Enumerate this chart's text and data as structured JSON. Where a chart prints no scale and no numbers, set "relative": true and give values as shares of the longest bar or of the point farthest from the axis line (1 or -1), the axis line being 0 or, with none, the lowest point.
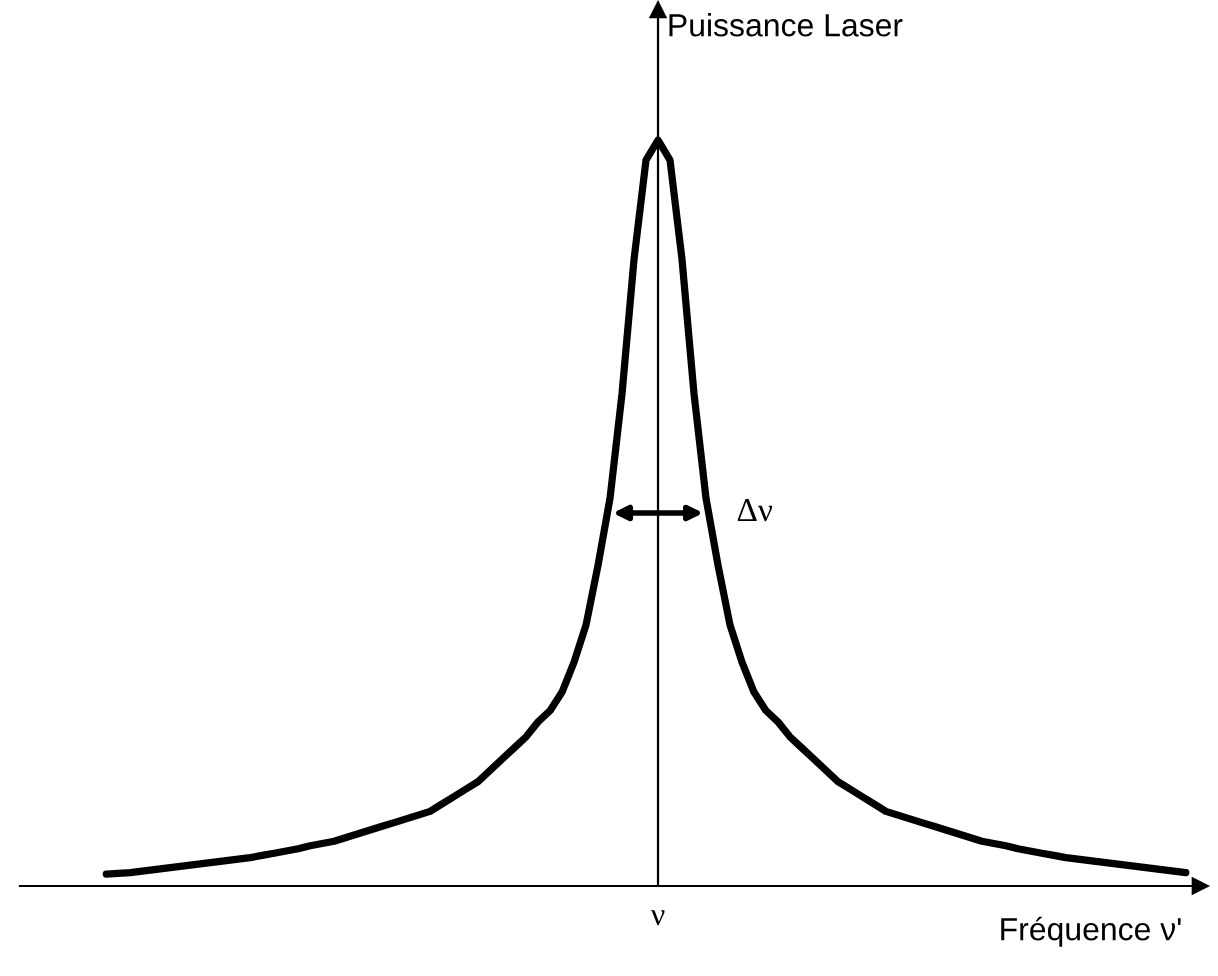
{
  "chart_data": {
    "type": "line",
    "relative": true,
    "xlabel": "Fréquence ν'",
    "ylabel": "Puissance Laser",
    "categories": [
      null,
      null,
      null,
      null,
      null,
      null,
      null,
      null,
      null,
      null,
      null,
      null,
      null,
      null,
      null,
      null,
      null,
      null,
      null,
      null,
      null,
      null,
      null,
      null,
      null,
      null,
      null,
      null,
      null,
      null,
      null,
      null,
      null,
      null,
      null,
      null,
      null,
      null,
      null,
      null,
      null,
      null,
      null,
      null,
      null,
      null,
      null,
      null,
      null,
      null,
      null,
      null,
      null,
      null,
      null,
      null,
      null,
      null,
      null,
      null,
      null,
      null,
      null,
      null,
      null,
      null,
      null,
      null,
      null,
      null,
      null,
      null,
      null,
      null,
      null,
      null,
      null,
      null,
      null,
      null,
      null,
      null,
      null,
      null,
      null,
      null,
      null,
      null,
      null,
      null,
      null
    ],
    "series": [
      {
        "color": "#000000",
        "values": [
          0.016,
          0.017,
          0.018,
          0.02,
          0.022,
          0.024,
          0.026,
          0.028,
          0.03,
          0.032,
          0.034,
          0.036,
          0.038,
          0.041,
          0.044,
          0.047,
          0.05,
          0.054,
          0.057,
          0.06,
          0.065,
          0.07,
          0.075,
          0.08,
          0.085,
          0.09,
          0.095,
          0.1,
          0.11,
          0.12,
          0.13,
          0.14,
          0.155,
          0.17,
          0.185,
          0.2,
          0.22,
          0.235,
          0.26,
          0.3,
          0.35,
          0.43,
          0.52,
          0.66,
          0.84,
          0.973,
          1,
          0.973,
          0.84,
          0.66,
          0.52,
          0.43,
          0.35,
          0.3,
          0.26,
          0.235,
          0.22,
          0.2,
          0.185,
          0.17,
          0.155,
          0.14,
          0.13,
          0.12,
          0.11,
          0.1,
          0.095,
          0.09,
          0.085,
          0.08,
          0.075,
          0.07,
          0.065,
          0.06,
          0.057,
          0.054,
          0.05,
          0.047,
          0.044,
          0.041,
          0.038,
          0.036,
          0.034,
          0.032,
          0.03,
          0.028,
          0.026,
          0.024,
          0.022,
          0.02,
          0.018
        ]
      }
    ],
    "annotations": [
      "ν",
      "Δν"
    ],
    "legend": false,
    "marker": "none",
    "line_style": "solid"
  }
}
